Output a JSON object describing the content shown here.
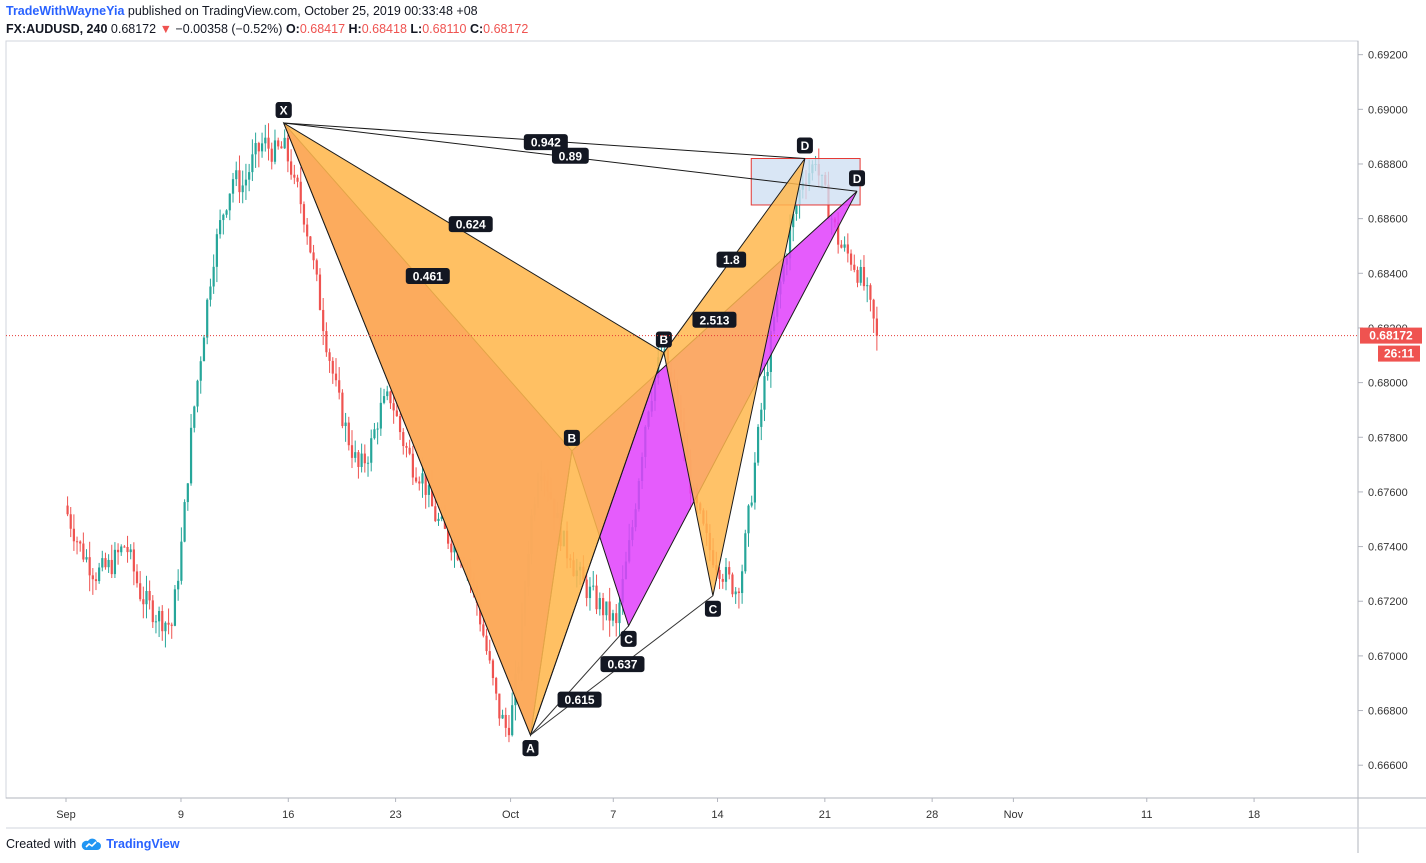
{
  "header": {
    "author": "TradeWithWayneYia",
    "published": "published on TradingView.com, October 25, 2019 00:33:48 +08",
    "symbol": "FX:AUDUSD, 240",
    "last": "0.68172",
    "change_arrow": "▼",
    "change": "−0.00358 (−0.52%)",
    "o_label": "O:",
    "o_value": "0.68417",
    "h_label": "H:",
    "h_value": "0.68418",
    "l_label": "L:",
    "l_value": "0.68110",
    "c_label": "C:",
    "c_value": "0.68172"
  },
  "footer": {
    "created_with": "Created with",
    "brand": "TradingView",
    "logo_icon": "tradingview-cloud-icon"
  },
  "colors": {
    "up": "#26a69a",
    "down": "#ef5350",
    "orange": "#ffb74d",
    "magenta": "#e040c8",
    "violet": "#e040fb",
    "zone_fill": "#cfe0f3",
    "zone_border": "#e53935",
    "price_line": "#e53935",
    "label_bg": "#131722",
    "label_fg": "#ffffff"
  },
  "chart_data": {
    "type": "candlestick",
    "title": "FX:AUDUSD, 240",
    "y_ticks": [
      "0.69200",
      "0.69000",
      "0.68800",
      "0.68600",
      "0.68400",
      "0.68200",
      "0.68000",
      "0.67800",
      "0.67600",
      "0.67400",
      "0.67200",
      "0.67000",
      "0.66800",
      "0.66600"
    ],
    "x_ticks": [
      "Sep",
      "9",
      "16",
      "23",
      "Oct",
      "7",
      "14",
      "21",
      "28",
      "Nov",
      "11",
      "18"
    ],
    "ylim": [
      0.6648,
      0.6925
    ],
    "current_price_label": "0.68172",
    "countdown_label": "26:11",
    "current_price": 0.68172,
    "candle_segments": [
      {
        "t": [
          0,
          7
        ],
        "c": [
          0.6755,
          0.674,
          0.673,
          0.6733,
          0.6741,
          0.6722,
          0.6715,
          0.6711
        ]
      },
      {
        "t": [
          7,
          15
        ],
        "c": [
          0.6711,
          0.6742,
          0.6785,
          0.6815,
          0.6845,
          0.6862,
          0.6875,
          0.6872,
          0.6882,
          0.6888,
          0.6884,
          0.6886,
          0.6875
        ]
      },
      {
        "t": [
          15,
          29
        ],
        "c": [
          0.6875,
          0.686,
          0.6838,
          0.6815,
          0.6795,
          0.678,
          0.6768,
          0.6775,
          0.679,
          0.6795,
          0.678,
          0.677,
          0.6765,
          0.6752,
          0.6745,
          0.674,
          0.6735,
          0.672,
          0.67,
          0.668,
          0.6671
        ]
      },
      {
        "t": [
          29,
          33
        ],
        "c": [
          0.6671,
          0.67,
          0.6745,
          0.6772,
          0.676,
          0.6745,
          0.6735
        ]
      },
      {
        "t": [
          33,
          36
        ],
        "c": [
          0.6735,
          0.6725,
          0.6718,
          0.6712
        ]
      },
      {
        "t": [
          36,
          40
        ],
        "c": [
          0.6712,
          0.6745,
          0.679,
          0.6812,
          0.679
        ]
      },
      {
        "t": [
          40,
          44
        ],
        "c": [
          0.679,
          0.6758,
          0.674,
          0.673,
          0.6723
        ]
      },
      {
        "t": [
          44,
          49
        ],
        "c": [
          0.6723,
          0.676,
          0.68,
          0.683,
          0.6855,
          0.6875,
          0.688
        ]
      },
      {
        "t": [
          49,
          53
        ],
        "c": [
          0.688,
          0.6865,
          0.685,
          0.6845,
          0.6835,
          0.68172
        ]
      }
    ],
    "potential_reversal_zone": {
      "t": [
        44.7,
        51.8
      ],
      "y": [
        0.6865,
        0.6882
      ]
    },
    "patterns": [
      {
        "name": "pattern-orange",
        "fill": "orange",
        "points": [
          {
            "label": "X",
            "t": 14.2,
            "y": 0.6895
          },
          {
            "label": "A",
            "t": 30.3,
            "y": 0.6671
          },
          {
            "label": "B",
            "t": 39.0,
            "y": 0.6811
          },
          {
            "label": "C",
            "t": 42.2,
            "y": 0.6722
          },
          {
            "label": "D",
            "t": 48.2,
            "y": 0.6882
          }
        ],
        "ratios": [
          {
            "label": "0.624",
            "t": 26.4,
            "y": 0.6858
          },
          {
            "label": "1.8",
            "t": 43.4,
            "y": 0.6845
          },
          {
            "label": "0.942",
            "t": 31.3,
            "y": 0.6888
          }
        ]
      },
      {
        "name": "pattern-magenta",
        "fill": "magenta",
        "points": [
          {
            "label": "X",
            "t": 14.2,
            "y": 0.6895
          },
          {
            "label": "A",
            "t": 30.3,
            "y": 0.6671
          },
          {
            "label": "B",
            "t": 33.0,
            "y": 0.6775
          },
          {
            "label": "C",
            "t": 36.7,
            "y": 0.6711
          },
          {
            "label": "D",
            "t": 51.6,
            "y": 0.687
          }
        ],
        "ratios": [
          {
            "label": "0.461",
            "t": 23.6,
            "y": 0.6839
          },
          {
            "label": "2.513",
            "t": 42.3,
            "y": 0.6823
          },
          {
            "label": "0.89",
            "t": 32.9,
            "y": 0.6883
          }
        ]
      }
    ],
    "retracement_lines": [
      {
        "label": "0.615",
        "from": {
          "t": 30.3,
          "y": 0.6671
        },
        "to": {
          "t": 36.7,
          "y": 0.6711
        },
        "at": {
          "t": 33.5,
          "y": 0.6684
        }
      },
      {
        "label": "0.637",
        "from": {
          "t": 30.3,
          "y": 0.6671
        },
        "to": {
          "t": 42.2,
          "y": 0.6722
        },
        "at": {
          "t": 36.3,
          "y": 0.6697
        }
      }
    ]
  }
}
